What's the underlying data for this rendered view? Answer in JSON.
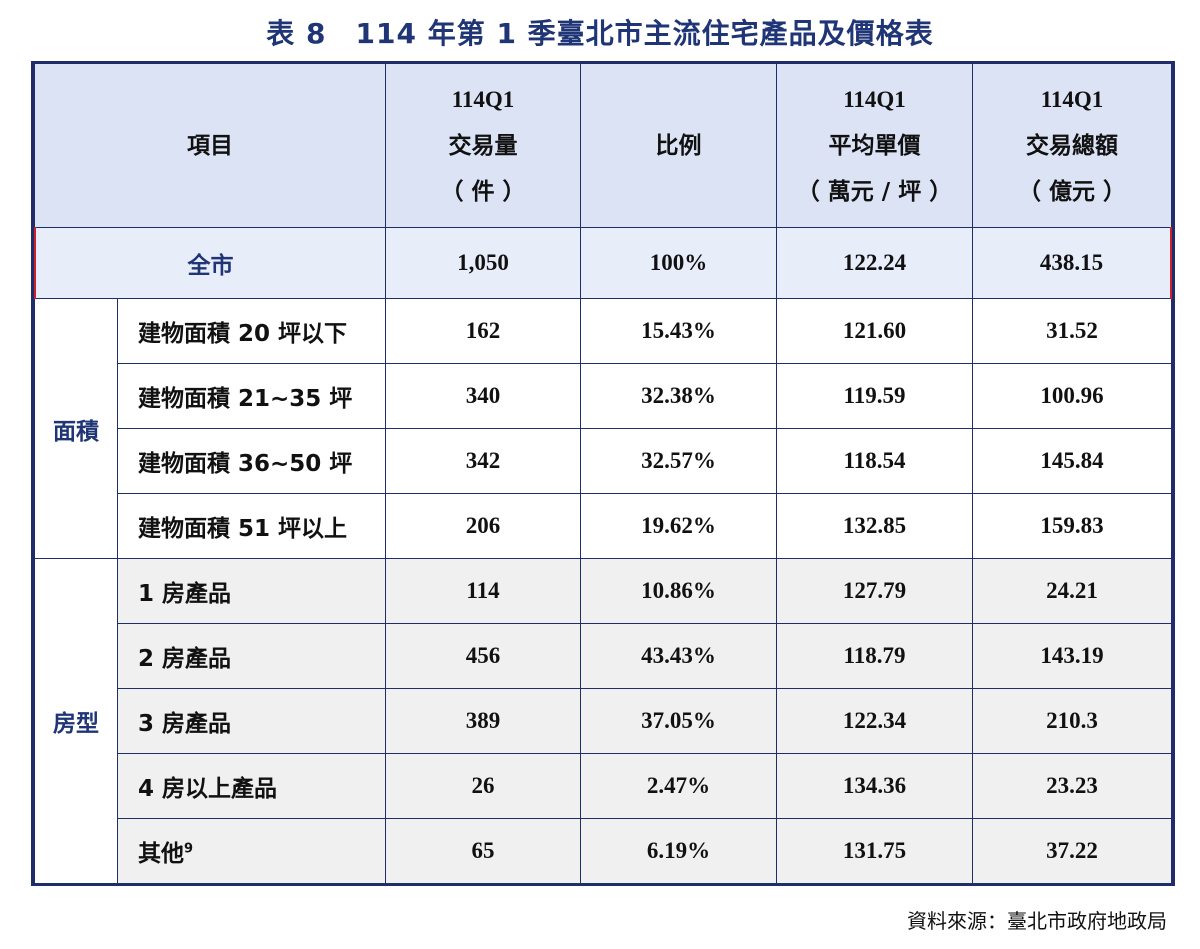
{
  "title": "表 8　114 年第 1 季臺北市主流住宅產品及價格表",
  "headers": {
    "item": "項目",
    "volume": [
      "114Q1",
      "交易量",
      "（ 件 ）"
    ],
    "ratio": "比例",
    "unit_price": [
      "114Q1",
      "平均單價",
      "（ 萬元 / 坪 ）"
    ],
    "total_amount": [
      "114Q1",
      "交易總額",
      "（ 億元 ）"
    ]
  },
  "total_row": {
    "label": "全市",
    "volume": "1,050",
    "ratio": "100%",
    "unit_price": "122.24",
    "total_amount": "438.15"
  },
  "groups": [
    {
      "name": "面積",
      "rows": [
        {
          "label": "建物面積 20 坪以下",
          "volume": "162",
          "ratio": "15.43%",
          "unit_price": "121.60",
          "total_amount": "31.52"
        },
        {
          "label": "建物面積 21~35 坪",
          "volume": "340",
          "ratio": "32.38%",
          "unit_price": "119.59",
          "total_amount": "100.96"
        },
        {
          "label": "建物面積 36~50 坪",
          "volume": "342",
          "ratio": "32.57%",
          "unit_price": "118.54",
          "total_amount": "145.84"
        },
        {
          "label": "建物面積 51 坪以上",
          "volume": "206",
          "ratio": "19.62%",
          "unit_price": "132.85",
          "total_amount": "159.83"
        }
      ]
    },
    {
      "name": "房型",
      "rows": [
        {
          "label": "1 房產品",
          "volume": "114",
          "ratio": "10.86%",
          "unit_price": "127.79",
          "total_amount": "24.21"
        },
        {
          "label": "2 房產品",
          "volume": "456",
          "ratio": "43.43%",
          "unit_price": "118.79",
          "total_amount": "143.19"
        },
        {
          "label": "3 房產品",
          "volume": "389",
          "ratio": "37.05%",
          "unit_price": "122.34",
          "total_amount": "210.3"
        },
        {
          "label": "4 房以上產品",
          "volume": "26",
          "ratio": "2.47%",
          "unit_price": "134.36",
          "total_amount": "23.23"
        },
        {
          "label": "其他",
          "footnote": "9",
          "volume": "65",
          "ratio": "6.19%",
          "unit_price": "131.75",
          "total_amount": "37.22"
        }
      ]
    }
  ],
  "source": "資料來源：臺北市政府地政局",
  "colors": {
    "title": "#1f3576",
    "border": "#1f2d6a",
    "header_bg": "#dbe3f5",
    "total_border": "#c8232c",
    "room_bg": "#f0f0f0"
  }
}
